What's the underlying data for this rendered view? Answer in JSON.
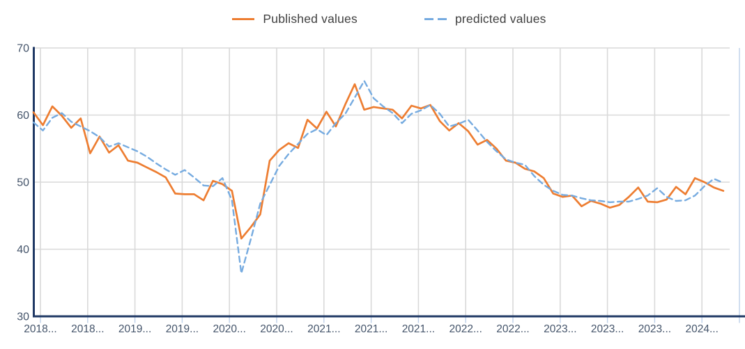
{
  "legend": {
    "published_label": "Published values",
    "predicted_label": "predicted values"
  },
  "colors": {
    "published": "#ED7D31",
    "predicted": "#76ABE0",
    "axis_line": "#1F3864",
    "gridline": "#D9D9D9",
    "tick_mark": "#BDD0E9",
    "plot_right_edge": "#BDD0E9",
    "axis_label_text": "#44546A",
    "legend_text": "#404040",
    "background": "#FFFFFF"
  },
  "chart_data": {
    "type": "line",
    "title": "",
    "xlabel": "",
    "ylabel": "",
    "ylim": [
      30,
      70
    ],
    "y_ticks": [
      70,
      60,
      50,
      40,
      30
    ],
    "grid": true,
    "legend_position": "top-center",
    "x_tick_labels": [
      "2018...",
      "2018...",
      "2019...",
      "2019...",
      "2020...",
      "2020...",
      "2021...",
      "2021...",
      "2021...",
      "2022...",
      "2022...",
      "2023...",
      "2023...",
      "2023...",
      "2024..."
    ],
    "x_label_every_n_points": 5,
    "points_per_series": 74,
    "series": [
      {
        "name": "Published values",
        "color": "#ED7D31",
        "style": "solid",
        "values": [
          60.4,
          58.5,
          61.3,
          59.9,
          58.1,
          59.5,
          54.3,
          56.8,
          54.4,
          55.5,
          53.2,
          52.9,
          52.2,
          51.5,
          50.7,
          48.3,
          48.2,
          48.2,
          47.3,
          50.2,
          49.7,
          48.7,
          41.6,
          43.3,
          45.2,
          53.2,
          54.8,
          55.8,
          55.1,
          59.3,
          58.0,
          60.5,
          58.3,
          61.6,
          64.6,
          60.8,
          61.2,
          61.0,
          60.8,
          59.5,
          61.4,
          61.0,
          61.5,
          59.1,
          57.7,
          58.8,
          57.6,
          55.6,
          56.3,
          55.0,
          53.2,
          52.9,
          52.0,
          51.6,
          50.6,
          48.3,
          47.8,
          48.0,
          46.4,
          47.2,
          46.8,
          46.2,
          46.6,
          47.8,
          49.2,
          47.1,
          47.0,
          47.4,
          49.3,
          48.2,
          50.6,
          50.0,
          49.2,
          48.7
        ]
      },
      {
        "name": "predicted values",
        "color": "#76ABE0",
        "style": "dashed",
        "values": [
          58.9,
          57.7,
          59.6,
          60.3,
          59.0,
          58.3,
          57.6,
          56.7,
          55.3,
          55.8,
          55.2,
          54.6,
          53.8,
          52.8,
          51.9,
          51.1,
          51.8,
          50.7,
          49.5,
          49.4,
          50.6,
          47.3,
          36.4,
          41.5,
          46.8,
          49.6,
          52.4,
          54.2,
          55.7,
          57.2,
          57.9,
          57.0,
          58.8,
          60.2,
          62.6,
          65.1,
          62.5,
          61.3,
          60.3,
          58.8,
          60.2,
          60.7,
          61.5,
          60.2,
          58.3,
          58.7,
          59.3,
          57.7,
          56.0,
          54.6,
          53.4,
          52.9,
          52.6,
          50.9,
          49.6,
          48.7,
          48.1,
          48.0,
          47.6,
          47.3,
          47.2,
          47.0,
          47.1,
          47.1,
          47.5,
          48.0,
          49.1,
          47.8,
          47.2,
          47.3,
          48.0,
          49.4,
          50.5,
          49.9
        ]
      }
    ]
  }
}
